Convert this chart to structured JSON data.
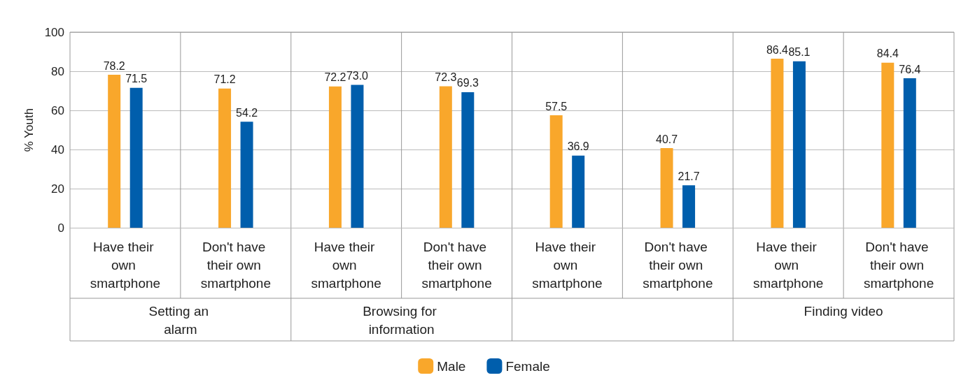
{
  "chart_data": {
    "type": "bar",
    "ylabel": "% Youth",
    "categories": [
      "Have their own smartphone",
      "Don't have their own smartphone",
      "Have their own smartphone",
      "Don't have their own smartphone",
      "Have their own smartphone",
      "Don't have their own smartphone",
      "Have their own smartphone",
      "Don't have their own smartphone"
    ],
    "series": [
      {
        "name": "Male",
        "color": "#f9a72b",
        "values": [
          78.2,
          71.2,
          72.2,
          72.3,
          57.5,
          40.7,
          86.4,
          84.4
        ],
        "value_labels": [
          "78.2",
          "71.2",
          "72.2",
          "72.3",
          "57.5",
          "40.7",
          "86.4",
          "84.4"
        ]
      },
      {
        "name": "Female",
        "color": "#005eac",
        "values": [
          71.5,
          54.2,
          73.0,
          69.3,
          36.9,
          21.7,
          85.1,
          76.4
        ],
        "value_labels": [
          "71.5",
          "54.2",
          "73.0",
          "69.3",
          "36.9",
          "21.7",
          "85.1",
          "76.4"
        ]
      }
    ],
    "annotations": [
      "Setting an alarm",
      "Browsing for information",
      null,
      "Finding video"
    ],
    "ylim": [
      0,
      100
    ],
    "yticks": [
      0,
      20,
      40,
      60,
      80,
      100
    ],
    "grid": "y",
    "legend": "bottom"
  }
}
